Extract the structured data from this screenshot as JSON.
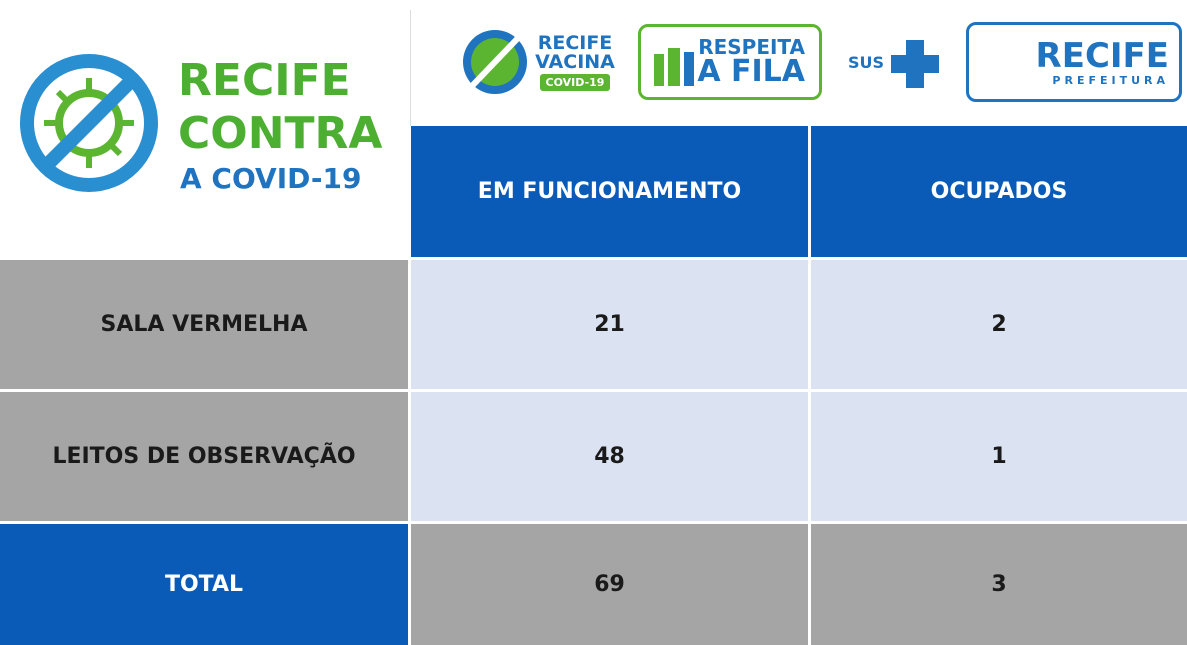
{
  "logo": {
    "lines": [
      "RECIFE",
      "CONTRA",
      "A COVID-19"
    ]
  },
  "badges": [
    {
      "lines": [
        "RECIFE",
        "VACINA",
        "COVID-19"
      ]
    },
    {
      "lines": [
        "RESPEITA",
        "A FILA"
      ]
    },
    {
      "lines": [
        "SUS"
      ]
    },
    {
      "lines": [
        "RECIFE",
        "PREFEITURA"
      ]
    }
  ],
  "table": {
    "header": [
      "EM FUNCIONAMENTO",
      "OCUPADOS"
    ],
    "rows": [
      [
        "SALA VERMELHA",
        21,
        2
      ],
      [
        "LEITOS DE OBSERVAÇÃO",
        48,
        1
      ],
      [
        "TOTAL",
        69,
        3
      ]
    ]
  }
}
